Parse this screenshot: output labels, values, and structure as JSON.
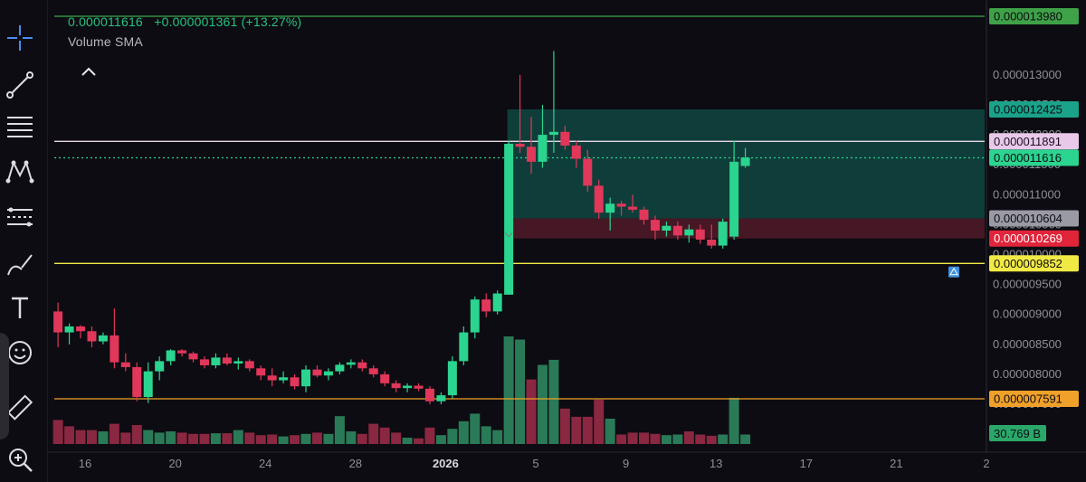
{
  "legend": {
    "price": "0.000011616",
    "change": "+0.000001361",
    "percent": "(+13.27%)",
    "indicator": "Volume SMA"
  },
  "toolbar": {
    "tools": [
      "crosshair-icon",
      "trend-line-icon",
      "fib-retracement-icon",
      "pattern-icon",
      "prediction-icon",
      "brush-icon",
      "text-icon",
      "emoji-icon",
      "ruler-icon",
      "zoom-in-icon"
    ]
  },
  "colors": {
    "background": "#0d0c12",
    "up": "#2bd48f",
    "down": "#e0375a",
    "volume_up": "#2a7a57",
    "volume_down": "#8a2741",
    "green_line": "#3da84a",
    "white_line": "#e7d6e8",
    "yellow_line": "#f2ea44",
    "orange_line": "#f0a12a",
    "position_profit": "#10443f",
    "position_loss": "#4a1826"
  },
  "chart_data": {
    "type": "candlestick",
    "y_scale": "linear",
    "ylim": [
      7.3e-06,
      1.4e-05
    ],
    "grid": false,
    "y_ticks": [
      "0.000013000",
      "0.000012500",
      "0.000012000",
      "0.000011500",
      "0.000011000",
      "0.000010500",
      "0.000010000",
      "0.000009500",
      "0.000009000",
      "0.000008500",
      "0.000008000",
      "0.000007500"
    ],
    "x_ticks": [
      {
        "label": "16",
        "day": 0
      },
      {
        "label": "20",
        "day": 4
      },
      {
        "label": "24",
        "day": 8
      },
      {
        "label": "28",
        "day": 12
      },
      {
        "label": "2026",
        "day": 16
      },
      {
        "label": "5",
        "day": 20
      },
      {
        "label": "9",
        "day": 24
      },
      {
        "label": "13",
        "day": 28
      },
      {
        "label": "17",
        "day": 32
      },
      {
        "label": "21",
        "day": 36
      },
      {
        "label": "2",
        "day": 40
      }
    ],
    "candles": [
      {
        "day": -1.2,
        "o": 9.05e-06,
        "h": 9.2e-06,
        "l": 8.45e-06,
        "c": 8.7e-06
      },
      {
        "day": -0.7,
        "o": 8.7e-06,
        "h": 8.85e-06,
        "l": 8.5e-06,
        "c": 8.8e-06
      },
      {
        "day": -0.2,
        "o": 8.8e-06,
        "h": 8.82e-06,
        "l": 8.6e-06,
        "c": 8.72e-06
      },
      {
        "day": 0.3,
        "o": 8.72e-06,
        "h": 8.8e-06,
        "l": 8.45e-06,
        "c": 8.55e-06
      },
      {
        "day": 0.8,
        "o": 8.55e-06,
        "h": 8.7e-06,
        "l": 8.5e-06,
        "c": 8.65e-06
      },
      {
        "day": 1.3,
        "o": 8.65e-06,
        "h": 9.1e-06,
        "l": 8.1e-06,
        "c": 8.2e-06
      },
      {
        "day": 1.8,
        "o": 8.2e-06,
        "h": 8.35e-06,
        "l": 8.05e-06,
        "c": 8.12e-06
      },
      {
        "day": 2.3,
        "o": 8.12e-06,
        "h": 8.2e-06,
        "l": 7.55e-06,
        "c": 7.62e-06
      },
      {
        "day": 2.8,
        "o": 7.62e-06,
        "h": 8.2e-06,
        "l": 7.52e-06,
        "c": 8.05e-06
      },
      {
        "day": 3.3,
        "o": 8.05e-06,
        "h": 8.3e-06,
        "l": 7.9e-06,
        "c": 8.22e-06
      },
      {
        "day": 3.8,
        "o": 8.22e-06,
        "h": 8.42e-06,
        "l": 8.15e-06,
        "c": 8.4e-06
      },
      {
        "day": 4.3,
        "o": 8.4e-06,
        "h": 8.42e-06,
        "l": 8.3e-06,
        "c": 8.35e-06
      },
      {
        "day": 4.8,
        "o": 8.35e-06,
        "h": 8.38e-06,
        "l": 8.2e-06,
        "c": 8.25e-06
      },
      {
        "day": 5.3,
        "o": 8.25e-06,
        "h": 8.3e-06,
        "l": 8.1e-06,
        "c": 8.15e-06
      },
      {
        "day": 5.8,
        "o": 8.15e-06,
        "h": 8.35e-06,
        "l": 8.1e-06,
        "c": 8.28e-06
      },
      {
        "day": 6.3,
        "o": 8.28e-06,
        "h": 8.35e-06,
        "l": 8.15e-06,
        "c": 8.18e-06
      },
      {
        "day": 6.8,
        "o": 8.18e-06,
        "h": 8.28e-06,
        "l": 8.08e-06,
        "c": 8.22e-06
      },
      {
        "day": 7.3,
        "o": 8.22e-06,
        "h": 8.25e-06,
        "l": 8.05e-06,
        "c": 8.1e-06
      },
      {
        "day": 7.8,
        "o": 8.1e-06,
        "h": 8.15e-06,
        "l": 7.9e-06,
        "c": 7.98e-06
      },
      {
        "day": 8.3,
        "o": 7.98e-06,
        "h": 8.1e-06,
        "l": 7.8e-06,
        "c": 7.9e-06
      },
      {
        "day": 8.8,
        "o": 7.9e-06,
        "h": 8.05e-06,
        "l": 7.85e-06,
        "c": 7.95e-06
      },
      {
        "day": 9.3,
        "o": 7.95e-06,
        "h": 8e-06,
        "l": 7.75e-06,
        "c": 7.8e-06
      },
      {
        "day": 9.8,
        "o": 7.8e-06,
        "h": 8.15e-06,
        "l": 7.7e-06,
        "c": 8.08e-06
      },
      {
        "day": 10.3,
        "o": 8.08e-06,
        "h": 8.15e-06,
        "l": 7.95e-06,
        "c": 7.98e-06
      },
      {
        "day": 10.8,
        "o": 7.98e-06,
        "h": 8.1e-06,
        "l": 7.9e-06,
        "c": 8.05e-06
      },
      {
        "day": 11.3,
        "o": 8.05e-06,
        "h": 8.2e-06,
        "l": 8e-06,
        "c": 8.16e-06
      },
      {
        "day": 11.8,
        "o": 8.16e-06,
        "h": 8.25e-06,
        "l": 8.1e-06,
        "c": 8.2e-06
      },
      {
        "day": 12.3,
        "o": 8.2e-06,
        "h": 8.25e-06,
        "l": 8.05e-06,
        "c": 8.1e-06
      },
      {
        "day": 12.8,
        "o": 8.1e-06,
        "h": 8.15e-06,
        "l": 7.95e-06,
        "c": 8e-06
      },
      {
        "day": 13.3,
        "o": 8e-06,
        "h": 8.05e-06,
        "l": 7.8e-06,
        "c": 7.85e-06
      },
      {
        "day": 13.8,
        "o": 7.85e-06,
        "h": 7.9e-06,
        "l": 7.7e-06,
        "c": 7.77e-06
      },
      {
        "day": 14.3,
        "o": 7.77e-06,
        "h": 7.85e-06,
        "l": 7.7e-06,
        "c": 7.81e-06
      },
      {
        "day": 14.8,
        "o": 7.81e-06,
        "h": 7.85e-06,
        "l": 7.72e-06,
        "c": 7.76e-06
      },
      {
        "day": 15.3,
        "o": 7.76e-06,
        "h": 7.8e-06,
        "l": 7.5e-06,
        "c": 7.55e-06
      },
      {
        "day": 15.8,
        "o": 7.55e-06,
        "h": 7.7e-06,
        "l": 7.5e-06,
        "c": 7.65e-06
      },
      {
        "day": 16.3,
        "o": 7.65e-06,
        "h": 8.3e-06,
        "l": 7.6e-06,
        "c": 8.22e-06
      },
      {
        "day": 16.8,
        "o": 8.22e-06,
        "h": 8.8e-06,
        "l": 8.15e-06,
        "c": 8.7e-06
      },
      {
        "day": 17.3,
        "o": 8.7e-06,
        "h": 9.3e-06,
        "l": 8.6e-06,
        "c": 9.25e-06
      },
      {
        "day": 17.8,
        "o": 9.25e-06,
        "h": 9.35e-06,
        "l": 8.95e-06,
        "c": 9.05e-06
      },
      {
        "day": 18.3,
        "o": 9.05e-06,
        "h": 9.4e-06,
        "l": 9e-06,
        "c": 9.35e-06
      },
      {
        "day": 18.8,
        "o": 9.33e-06,
        "h": 1.19e-05,
        "l": 9.33e-06,
        "c": 1.185e-05
      },
      {
        "day": 19.3,
        "o": 1.185e-05,
        "h": 1.3e-05,
        "l": 1.17e-05,
        "c": 1.18e-05
      },
      {
        "day": 19.8,
        "o": 1.18e-05,
        "h": 1.23e-05,
        "l": 1.135e-05,
        "c": 1.155e-05
      },
      {
        "day": 20.3,
        "o": 1.155e-05,
        "h": 1.25e-05,
        "l": 1.145e-05,
        "c": 1.2e-05
      },
      {
        "day": 20.8,
        "o": 1.2e-05,
        "h": 1.34e-05,
        "l": 1.17e-05,
        "c": 1.205e-05
      },
      {
        "day": 21.3,
        "o": 1.205e-05,
        "h": 1.215e-05,
        "l": 1.175e-05,
        "c": 1.182e-05
      },
      {
        "day": 21.8,
        "o": 1.182e-05,
        "h": 1.19e-05,
        "l": 1.145e-05,
        "c": 1.16e-05
      },
      {
        "day": 22.3,
        "o": 1.16e-05,
        "h": 1.175e-05,
        "l": 1.105e-05,
        "c": 1.115e-05
      },
      {
        "day": 22.8,
        "o": 1.115e-05,
        "h": 1.125e-05,
        "l": 1.06e-05,
        "c": 1.07e-05
      },
      {
        "day": 23.3,
        "o": 1.07e-05,
        "h": 1.095e-05,
        "l": 1.04e-05,
        "c": 1.085e-05
      },
      {
        "day": 23.8,
        "o": 1.085e-05,
        "h": 1.09e-05,
        "l": 1.065e-05,
        "c": 1.08e-05
      },
      {
        "day": 24.3,
        "o": 1.08e-05,
        "h": 1.1e-05,
        "l": 1.07e-05,
        "c": 1.075e-05
      },
      {
        "day": 24.8,
        "o": 1.075e-05,
        "h": 1.08e-05,
        "l": 1.05e-05,
        "c": 1.058e-05
      },
      {
        "day": 25.3,
        "o": 1.058e-05,
        "h": 1.065e-05,
        "l": 1.025e-05,
        "c": 1.04e-05
      },
      {
        "day": 25.8,
        "o": 1.04e-05,
        "h": 1.055e-05,
        "l": 1.03e-05,
        "c": 1.048e-05
      },
      {
        "day": 26.3,
        "o": 1.048e-05,
        "h": 1.055e-05,
        "l": 1.025e-05,
        "c": 1.032e-05
      },
      {
        "day": 26.8,
        "o": 1.032e-05,
        "h": 1.05e-05,
        "l": 1.02e-05,
        "c": 1.042e-05
      },
      {
        "day": 27.3,
        "o": 1.042e-05,
        "h": 1.05e-05,
        "l": 1.018e-05,
        "c": 1.025e-05
      },
      {
        "day": 27.8,
        "o": 1.025e-05,
        "h": 1.05e-05,
        "l": 1.01e-05,
        "c": 1.015e-05
      },
      {
        "day": 28.3,
        "o": 1.015e-05,
        "h": 1.06e-05,
        "l": 1.01e-05,
        "c": 1.055e-05
      },
      {
        "day": 28.8,
        "o": 1.03e-05,
        "h": 1.19e-05,
        "l": 1.025e-05,
        "c": 1.155e-05
      },
      {
        "day": 29.3,
        "o": 1.148e-05,
        "h": 1.178e-05,
        "l": 1.145e-05,
        "c": 1.162e-05
      }
    ],
    "volume": [
      {
        "day": -1.2,
        "v": 0.38,
        "up": false
      },
      {
        "day": -0.7,
        "v": 0.28,
        "up": false
      },
      {
        "day": -0.2,
        "v": 0.22,
        "up": false
      },
      {
        "day": 0.3,
        "v": 0.22,
        "up": false
      },
      {
        "day": 0.8,
        "v": 0.2,
        "up": true
      },
      {
        "day": 1.3,
        "v": 0.32,
        "up": false
      },
      {
        "day": 1.8,
        "v": 0.18,
        "up": false
      },
      {
        "day": 2.3,
        "v": 0.3,
        "up": false
      },
      {
        "day": 2.8,
        "v": 0.22,
        "up": true
      },
      {
        "day": 3.3,
        "v": 0.18,
        "up": true
      },
      {
        "day": 3.8,
        "v": 0.2,
        "up": true
      },
      {
        "day": 4.3,
        "v": 0.18,
        "up": false
      },
      {
        "day": 4.8,
        "v": 0.16,
        "up": false
      },
      {
        "day": 5.3,
        "v": 0.16,
        "up": false
      },
      {
        "day": 5.8,
        "v": 0.17,
        "up": true
      },
      {
        "day": 6.3,
        "v": 0.17,
        "up": false
      },
      {
        "day": 6.8,
        "v": 0.22,
        "up": true
      },
      {
        "day": 7.3,
        "v": 0.18,
        "up": false
      },
      {
        "day": 7.8,
        "v": 0.14,
        "up": false
      },
      {
        "day": 8.3,
        "v": 0.15,
        "up": false
      },
      {
        "day": 8.8,
        "v": 0.12,
        "up": true
      },
      {
        "day": 9.3,
        "v": 0.14,
        "up": false
      },
      {
        "day": 9.8,
        "v": 0.16,
        "up": true
      },
      {
        "day": 10.3,
        "v": 0.18,
        "up": false
      },
      {
        "day": 10.8,
        "v": 0.16,
        "up": true
      },
      {
        "day": 11.3,
        "v": 0.44,
        "up": true
      },
      {
        "day": 11.8,
        "v": 0.2,
        "up": true
      },
      {
        "day": 12.3,
        "v": 0.16,
        "up": false
      },
      {
        "day": 12.8,
        "v": 0.32,
        "up": false
      },
      {
        "day": 13.3,
        "v": 0.26,
        "up": false
      },
      {
        "day": 13.8,
        "v": 0.18,
        "up": false
      },
      {
        "day": 14.3,
        "v": 0.1,
        "up": true
      },
      {
        "day": 14.8,
        "v": 0.09,
        "up": false
      },
      {
        "day": 15.3,
        "v": 0.26,
        "up": false
      },
      {
        "day": 15.8,
        "v": 0.14,
        "up": true
      },
      {
        "day": 16.3,
        "v": 0.24,
        "up": true
      },
      {
        "day": 16.8,
        "v": 0.36,
        "up": true
      },
      {
        "day": 17.3,
        "v": 0.48,
        "up": true
      },
      {
        "day": 17.8,
        "v": 0.28,
        "up": true
      },
      {
        "day": 18.3,
        "v": 0.22,
        "up": true
      },
      {
        "day": 18.8,
        "v": 1.7,
        "up": true
      },
      {
        "day": 19.3,
        "v": 1.65,
        "up": true
      },
      {
        "day": 19.8,
        "v": 1.02,
        "up": false
      },
      {
        "day": 20.3,
        "v": 1.25,
        "up": true
      },
      {
        "day": 20.8,
        "v": 1.33,
        "up": true
      },
      {
        "day": 21.3,
        "v": 0.56,
        "up": false
      },
      {
        "day": 21.8,
        "v": 0.43,
        "up": false
      },
      {
        "day": 22.3,
        "v": 0.43,
        "up": false
      },
      {
        "day": 22.8,
        "v": 0.7,
        "up": false
      },
      {
        "day": 23.3,
        "v": 0.4,
        "up": true
      },
      {
        "day": 23.8,
        "v": 0.15,
        "up": false
      },
      {
        "day": 24.3,
        "v": 0.18,
        "up": false
      },
      {
        "day": 24.8,
        "v": 0.18,
        "up": false
      },
      {
        "day": 25.3,
        "v": 0.16,
        "up": false
      },
      {
        "day": 25.8,
        "v": 0.14,
        "up": true
      },
      {
        "day": 26.3,
        "v": 0.15,
        "up": true
      },
      {
        "day": 26.8,
        "v": 0.2,
        "up": false
      },
      {
        "day": 27.3,
        "v": 0.15,
        "up": false
      },
      {
        "day": 27.8,
        "v": 0.13,
        "up": false
      },
      {
        "day": 28.3,
        "v": 0.15,
        "up": true
      },
      {
        "day": 28.8,
        "v": 0.73,
        "up": true
      },
      {
        "day": 29.3,
        "v": 0.15,
        "up": true
      }
    ],
    "volume_label": "30.769 B",
    "horizontal_lines": [
      {
        "price": 1.398e-05,
        "label": "0.000013980",
        "color": "#3da84a",
        "style": "solid"
      },
      {
        "price": 1.1891e-05,
        "label": "0.000011891",
        "color": "#e7d6e8",
        "style": "solid"
      },
      {
        "price": 1.1616e-05,
        "label": "0.000011616",
        "color": "#2bd48f",
        "style": "dotted"
      },
      {
        "price": 9.852e-06,
        "label": "0.000009852",
        "color": "#f2ea44",
        "style": "solid"
      },
      {
        "price": 7.591e-06,
        "label": "0.000007591",
        "color": "#f0a12a",
        "style": "solid"
      }
    ],
    "position_tool": {
      "start_day": 18.9,
      "end_day": 40,
      "target": 1.2425e-05,
      "entry": 1.0604e-05,
      "stop": 1.0269e-05,
      "target_label": "0.000012425",
      "entry_label": "0.000010604",
      "stop_label": "0.000010269"
    }
  }
}
